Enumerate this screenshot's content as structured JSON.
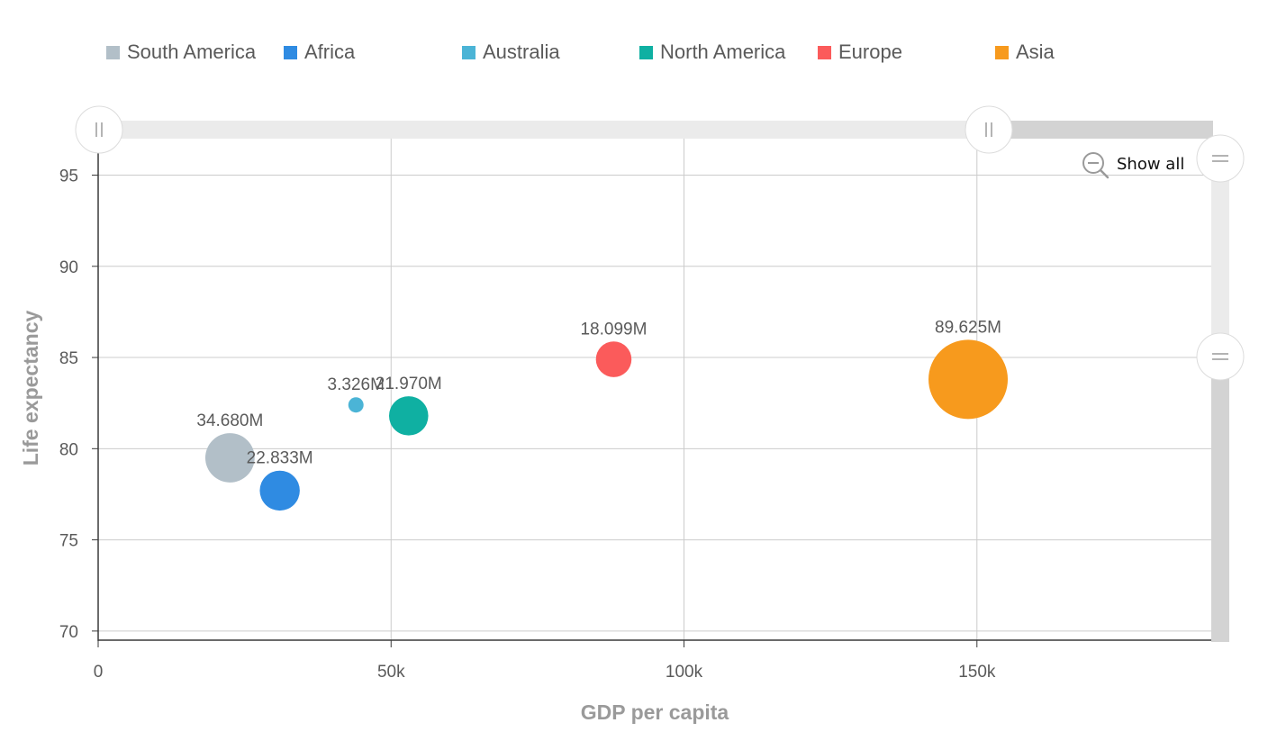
{
  "legend": [
    {
      "label": "South America",
      "color": "#b2bfc8"
    },
    {
      "label": "Africa",
      "color": "#2f8be2"
    },
    {
      "label": "Australia",
      "color": "#4bb4d6"
    },
    {
      "label": "North America",
      "color": "#0fb0a2"
    },
    {
      "label": "Europe",
      "color": "#fb5b5b"
    },
    {
      "label": "Asia",
      "color": "#f79a1d"
    }
  ],
  "zoom": {
    "show_all_label": "Show all",
    "icon": "zoom-out-icon"
  },
  "chart_data": {
    "type": "scatter",
    "xlabel": "GDP per capita",
    "ylabel": "Life expectancy",
    "xlim": [
      0,
      190000
    ],
    "ylim": [
      69.5,
      97
    ],
    "x_ticks": [
      0,
      50000,
      100000,
      150000
    ],
    "x_tick_labels": [
      "0",
      "50k",
      "100k",
      "150k"
    ],
    "y_ticks": [
      70,
      75,
      80,
      85,
      90,
      95
    ],
    "y_tick_labels": [
      "70",
      "75",
      "80",
      "85",
      "90",
      "95"
    ],
    "grid": true,
    "legend_position": "top",
    "size_unit": "population",
    "series": [
      {
        "name": "South America",
        "color": "#b2bfc8",
        "x": 22500,
        "y": 79.5,
        "size": 34.68,
        "label": "34.680M"
      },
      {
        "name": "Africa",
        "color": "#2f8be2",
        "x": 31000,
        "y": 77.7,
        "size": 22.833,
        "label": "22.833M"
      },
      {
        "name": "Australia",
        "color": "#4bb4d6",
        "x": 44000,
        "y": 82.4,
        "size": 3.326,
        "label": "3.326M"
      },
      {
        "name": "North America",
        "color": "#0fb0a2",
        "x": 53000,
        "y": 81.8,
        "size": 21.97,
        "label": "21.970M"
      },
      {
        "name": "Europe",
        "color": "#fb5b5b",
        "x": 88000,
        "y": 84.9,
        "size": 18.099,
        "label": "18.099M"
      },
      {
        "name": "Asia",
        "color": "#f79a1d",
        "x": 148500,
        "y": 83.8,
        "size": 89.625,
        "label": "89.625M"
      }
    ]
  }
}
